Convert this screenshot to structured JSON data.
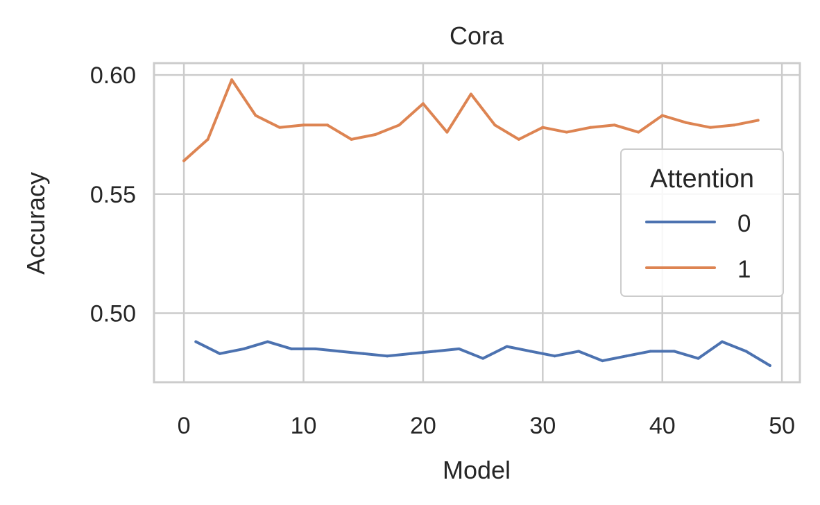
{
  "chart_data": {
    "type": "line",
    "title": "Cora",
    "xlabel": "Model",
    "ylabel": "Accuracy",
    "xlim": [
      -2.5,
      51.5
    ],
    "ylim": [
      0.471,
      0.605
    ],
    "xticks": [
      0,
      10,
      20,
      30,
      40,
      50
    ],
    "xtick_labels": [
      "0",
      "10",
      "20",
      "30",
      "40",
      "50"
    ],
    "yticks": [
      0.5,
      0.55,
      0.6
    ],
    "ytick_labels": [
      "0.50",
      "0.55",
      "0.60"
    ],
    "grid": true,
    "legend": {
      "title": "Attention",
      "placement": "center-right"
    },
    "series": [
      {
        "name": "0",
        "color": "#4c72b0",
        "x": [
          1,
          3,
          5,
          7,
          9,
          11,
          13,
          15,
          17,
          19,
          21,
          23,
          25,
          27,
          29,
          31,
          33,
          35,
          37,
          39,
          41,
          43,
          45,
          47,
          49
        ],
        "y": [
          0.488,
          0.483,
          0.485,
          0.488,
          0.485,
          0.485,
          0.484,
          0.483,
          0.482,
          0.483,
          0.484,
          0.485,
          0.481,
          0.486,
          0.484,
          0.482,
          0.484,
          0.48,
          0.482,
          0.484,
          0.484,
          0.481,
          0.488,
          0.484,
          0.478
        ]
      },
      {
        "name": "1",
        "color": "#dd8452",
        "x": [
          0,
          2,
          4,
          6,
          8,
          10,
          12,
          14,
          16,
          18,
          20,
          22,
          24,
          26,
          28,
          30,
          32,
          34,
          36,
          38,
          40,
          42,
          44,
          46,
          48
        ],
        "y": [
          0.564,
          0.573,
          0.598,
          0.583,
          0.578,
          0.579,
          0.579,
          0.573,
          0.575,
          0.579,
          0.588,
          0.576,
          0.592,
          0.579,
          0.573,
          0.578,
          0.576,
          0.578,
          0.579,
          0.576,
          0.583,
          0.58,
          0.578,
          0.579,
          0.581
        ]
      }
    ]
  }
}
